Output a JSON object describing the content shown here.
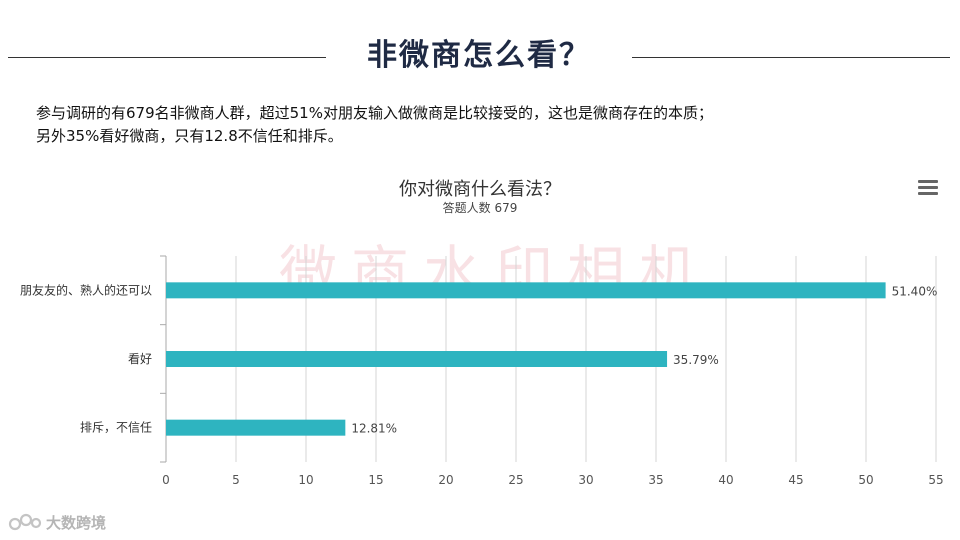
{
  "slide": {
    "title": "非微商怎么看？",
    "intro_lines": [
      "参与调研的有679名非微商人群，超过51%对朋友输入做微商是比较接受的，这也是微商存在的本质；",
      "另外35%看好微商，只有12.8不信任和排斥。"
    ]
  },
  "watermark": {
    "text": "微商水印相机"
  },
  "footer": {
    "brand": "大数跨境"
  },
  "icons": {
    "chart_menu": "hamburger-menu-icon"
  },
  "colors": {
    "bar": "#2eb4c0",
    "grid": "#d4d4d4",
    "title": "#1f2a44"
  },
  "chart_data": {
    "type": "bar",
    "orientation": "horizontal",
    "title": "你对微商什么看法？",
    "subtitle": "答题人数 679",
    "categories": [
      "朋友友的、熟人的还可以",
      "看好",
      "排斥，不信任"
    ],
    "values": [
      51.4,
      35.79,
      12.81
    ],
    "value_labels": [
      "51.40%",
      "35.79%",
      "12.81%"
    ],
    "x_ticks": [
      "0",
      "5",
      "10",
      "15",
      "20",
      "25",
      "30",
      "35",
      "40",
      "45",
      "50",
      "55"
    ],
    "xlim": [
      0,
      55
    ],
    "grid": true,
    "legend": false,
    "xlabel": "",
    "ylabel": ""
  }
}
